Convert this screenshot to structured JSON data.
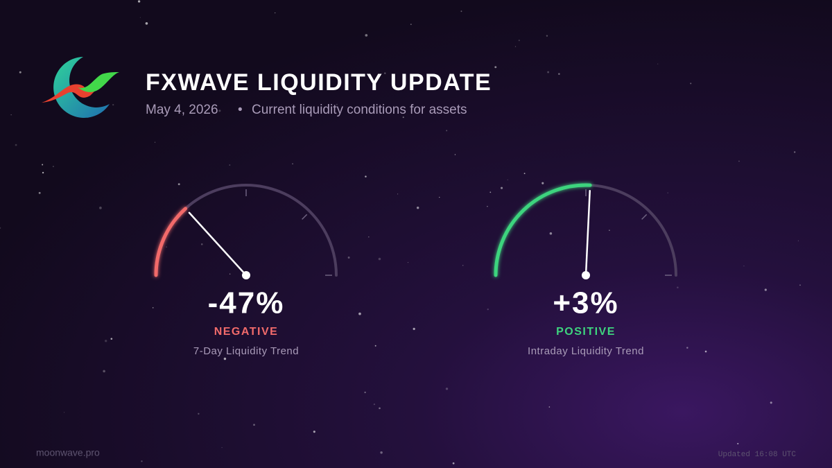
{
  "header": {
    "title": "FXWAVE LIQUIDITY UPDATE",
    "date": "May 4, 2026",
    "subtitle": "Current liquidity conditions for assets"
  },
  "chart_data": [
    {
      "type": "gauge",
      "values": [
        -47
      ],
      "value_labels": [
        "-47%"
      ],
      "status": "NEGATIVE",
      "label": "7-Day Liquidity Trend",
      "color": "#f26b6b",
      "ylim": [
        -100,
        100
      ],
      "yticks": [
        0,
        50,
        100
      ]
    },
    {
      "type": "gauge",
      "values": [
        3
      ],
      "value_labels": [
        "+3%"
      ],
      "status": "POSITIVE",
      "label": "Intraday Liquidity Trend",
      "color": "#3ed47e",
      "ylim": [
        -100,
        100
      ],
      "yticks": [
        0,
        50,
        100
      ]
    }
  ],
  "footer": {
    "site": "moonwave.pro",
    "updated": "Updated 16:08 UTC"
  }
}
